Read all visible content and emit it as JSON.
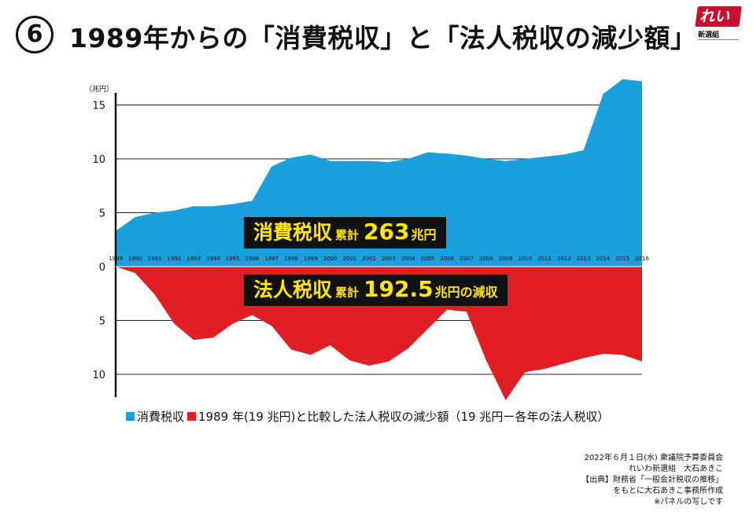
{
  "header": {
    "badge": "6",
    "title": "1989年からの「消費税収」と「法人税収の減少額」"
  },
  "logo": {
    "name": "れいわ",
    "sub": "新選組"
  },
  "labels": {
    "consumption": {
      "main": "消費税収",
      "small": "累計",
      "value": "263",
      "unit": "兆円"
    },
    "corporate": {
      "main": "法人税収",
      "small": "累計",
      "value": "192.5",
      "unit": "兆円の減収"
    }
  },
  "legend": {
    "consumption": "消費税収",
    "corporate": "1989 年(19 兆円)と比較した法人税収の減少額（19 兆円ー各年の法人税収）"
  },
  "credits": [
    "2022年６月１日(水) 衆議院予算委員会",
    "れいわ新選組　大石あきこ",
    "【出典】財務省「一般会計税収の推移」",
    "をもとに大石あきこ事務所作成",
    "※パネルの写しです"
  ],
  "colors": {
    "consumption": "#1aa0dd",
    "corporate": "#e01e24",
    "axis": "#111111",
    "grid": "#222222",
    "label_bg": "#111111",
    "label_text": "#ffe800",
    "logo": "#c8102e"
  },
  "chart_data": {
    "type": "area",
    "title": "1989年からの「消費税収」と「法人税収の減少額」",
    "ylabel": "（兆円）",
    "xlabel": "",
    "x": [
      "1989",
      "1990",
      "1991",
      "1992",
      "1993",
      "1994",
      "1995",
      "1996",
      "1997",
      "1998",
      "1999",
      "2000",
      "2001",
      "2002",
      "2003",
      "2004",
      "2005",
      "2006",
      "2007",
      "2008",
      "2009",
      "2010",
      "2011",
      "2012",
      "2013",
      "2014",
      "2015",
      "2016"
    ],
    "y_ticks_upper": [
      15,
      10,
      5,
      0
    ],
    "y_ticks_lower": [
      5,
      10
    ],
    "ylim": [
      -12.5,
      17.5
    ],
    "series": [
      {
        "name": "消費税収",
        "values": [
          3.3,
          4.6,
          5.0,
          5.2,
          5.6,
          5.6,
          5.8,
          6.1,
          9.3,
          10.1,
          10.4,
          9.8,
          9.8,
          9.8,
          9.7,
          10.0,
          10.6,
          10.5,
          10.3,
          10.0,
          9.8,
          10.0,
          10.2,
          10.4,
          10.8,
          16.0,
          17.4,
          17.2
        ]
      },
      {
        "name": "法人税収の減少額",
        "values": [
          0.0,
          0.6,
          2.6,
          5.3,
          6.8,
          6.6,
          5.3,
          4.5,
          5.5,
          7.7,
          8.2,
          7.3,
          8.7,
          9.2,
          8.8,
          7.6,
          5.8,
          4.0,
          4.2,
          8.7,
          12.4,
          9.8,
          9.5,
          9.0,
          8.5,
          8.1,
          8.2,
          8.8
        ]
      }
    ]
  }
}
